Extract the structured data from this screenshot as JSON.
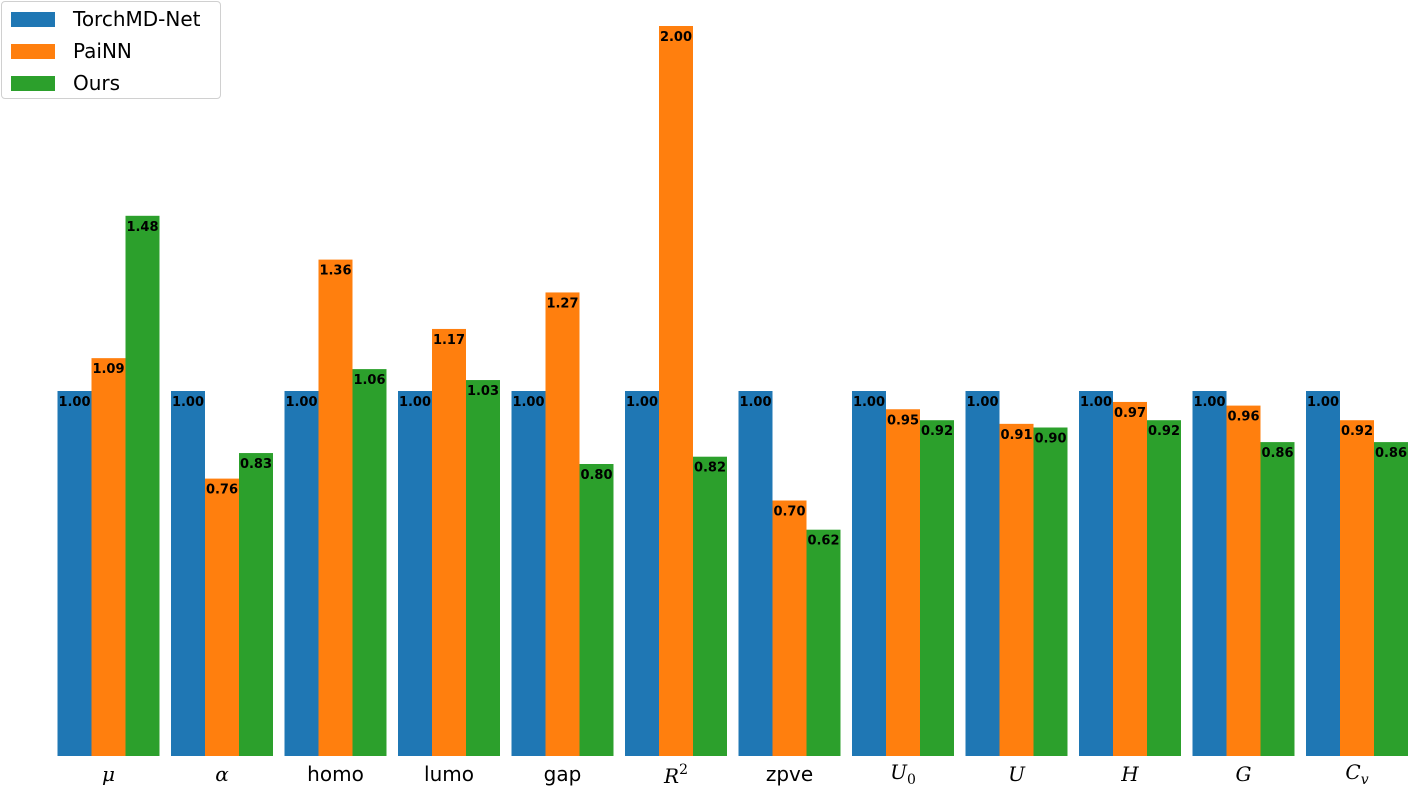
{
  "chart_data": {
    "type": "bar",
    "title": "",
    "xlabel": "",
    "ylabel": "",
    "ylim": [
      0,
      2.0
    ],
    "grid": false,
    "legend_placement": "top-left",
    "categories": [
      "μ",
      "α",
      "homo",
      "lumo",
      "gap",
      "R2",
      "zpve",
      "U0",
      "U",
      "H",
      "G",
      "Cv"
    ],
    "series": [
      {
        "name": "TorchMD-Net",
        "color": "#1f77b4",
        "values": [
          1.0,
          1.0,
          1.0,
          1.0,
          1.0,
          1.0,
          1.0,
          1.0,
          1.0,
          1.0,
          1.0,
          1.0
        ],
        "labels": [
          "1.00",
          "1.00",
          "1.00",
          "1.00",
          "1.00",
          "1.00",
          "1.00",
          "1.00",
          "1.00",
          "1.00",
          "1.00",
          "1.00"
        ]
      },
      {
        "name": "PaiNN",
        "color": "#ff7f0e",
        "values": [
          1.09,
          0.76,
          1.36,
          1.17,
          1.27,
          2.0,
          0.7,
          0.95,
          0.91,
          0.97,
          0.96,
          0.92
        ],
        "labels": [
          "1.09",
          "0.76",
          "1.36",
          "1.17",
          "1.27",
          "2.00",
          "0.70",
          "0.95",
          "0.91",
          "0.97",
          "0.96",
          "0.92"
        ]
      },
      {
        "name": "Ours",
        "color": "#2ca02c",
        "values": [
          1.48,
          0.83,
          1.06,
          1.03,
          0.8,
          0.82,
          0.62,
          0.92,
          0.9,
          0.92,
          0.86,
          0.86
        ],
        "labels": [
          "1.48",
          "0.83",
          "1.06",
          "1.03",
          "0.80",
          "0.82",
          "0.62",
          "0.92",
          "0.90",
          "0.92",
          "0.86",
          "0.86"
        ]
      }
    ]
  }
}
